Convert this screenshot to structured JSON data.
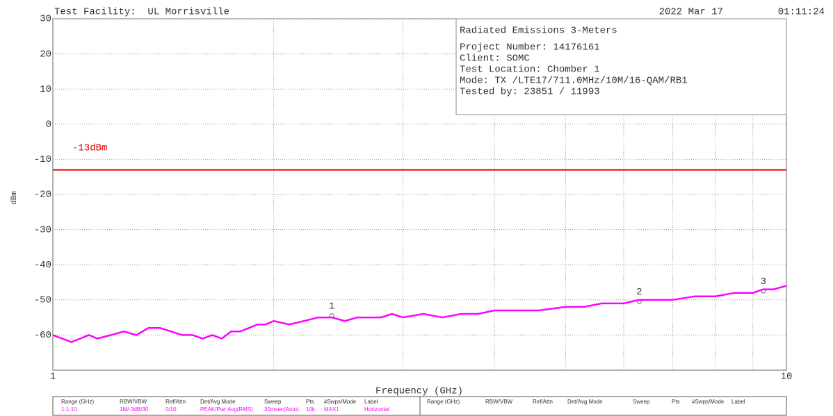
{
  "header": {
    "facility": "Test Facility:  UL Morrisville",
    "date": "2022 Mar 17",
    "time": "01:11:24"
  },
  "chart_data": {
    "type": "line",
    "xlabel": "Frequency (GHz)",
    "ylabel": "dBm",
    "xscale": "log",
    "xlim": [
      1,
      10
    ],
    "ylim": [
      -70,
      30
    ],
    "xticks": [
      1,
      10
    ],
    "xgrid": [
      2,
      3,
      4,
      5,
      6,
      7,
      8,
      9
    ],
    "yticks": [
      30,
      20,
      10,
      0,
      -10,
      -20,
      -30,
      -40,
      -50,
      -60
    ],
    "grid": true,
    "series": [
      {
        "color": "#ff00ff",
        "x": [
          1.0,
          1.03,
          1.06,
          1.09,
          1.12,
          1.15,
          1.2,
          1.25,
          1.3,
          1.35,
          1.4,
          1.45,
          1.5,
          1.55,
          1.6,
          1.65,
          1.7,
          1.75,
          1.8,
          1.85,
          1.9,
          1.95,
          2.0,
          2.1,
          2.2,
          2.3,
          2.4,
          2.5,
          2.6,
          2.7,
          2.8,
          2.9,
          3.0,
          3.2,
          3.4,
          3.6,
          3.8,
          4.0,
          4.3,
          4.6,
          5.0,
          5.3,
          5.6,
          6.0,
          6.3,
          6.6,
          7.0,
          7.5,
          8.0,
          8.5,
          9.0,
          9.3,
          9.6,
          10.0
        ],
        "values": [
          -60,
          -61,
          -62,
          -61,
          -60,
          -61,
          -60,
          -59,
          -60,
          -58,
          -58,
          -59,
          -60,
          -60,
          -61,
          -60,
          -61,
          -59,
          -59,
          -58,
          -57,
          -57,
          -56,
          -57,
          -56,
          -55,
          -55,
          -56,
          -55,
          -55,
          -55,
          -54,
          -55,
          -54,
          -55,
          -54,
          -54,
          -53,
          -53,
          -53,
          -52,
          -52,
          -51,
          -51,
          -50,
          -50,
          -50,
          -49,
          -49,
          -48,
          -48,
          -47,
          -47,
          -46
        ]
      }
    ],
    "limit": {
      "label": "-13dBm",
      "value": -13,
      "color": "#e00000"
    },
    "markers": {
      "labels": [
        "1",
        "2",
        "3"
      ],
      "x": [
        2.4,
        6.3,
        9.3
      ],
      "values": [
        -54.5,
        -50.5,
        -47.5
      ]
    }
  },
  "info_box": {
    "title": "Radiated Emissions 3-Meters",
    "lines": [
      "Project Number: 14176161",
      "Client: SOMC",
      "Test Location: Chomber 1",
      "Mode: TX /LTE17/711.0MHz/10M/16-QAM/RB1",
      "Tested by: 23851 / 11993"
    ]
  },
  "table": {
    "left": {
      "headers": [
        "Range (GHz)",
        "RBW/VBW",
        "Ref/Attn",
        "Det/Avg Mode",
        "Sweep",
        "Pts",
        "#Swps/Mode",
        "Label"
      ],
      "values": [
        "1:1-10",
        "1M/-3dB/30",
        "0/10",
        "PEAK/Pwr Avg(RMS)",
        "30msec(Auto)",
        "10k",
        "MAX1",
        "Horizontal"
      ]
    },
    "right": {
      "headers": [
        "Range (GHz)",
        "RBW/VBW",
        "Ref/Attn",
        "Det/Avg Mode",
        "Sweep",
        "Pts",
        "#Swps/Mode",
        "Label"
      ]
    }
  }
}
